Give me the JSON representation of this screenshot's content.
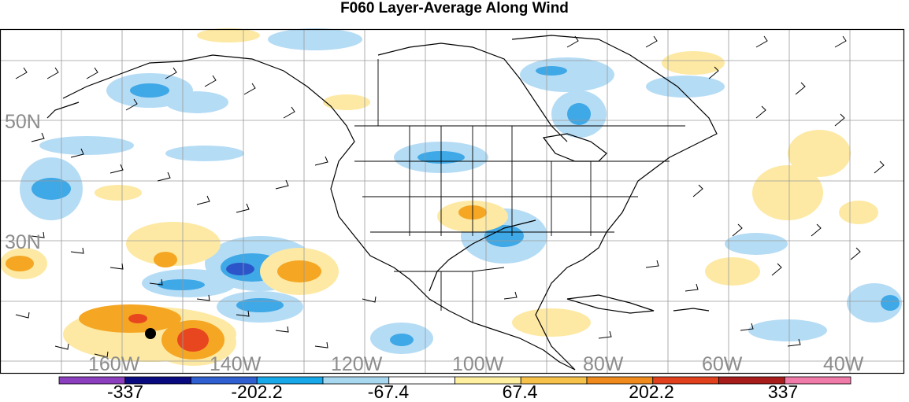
{
  "title": "F060 Layer-Average Along Wind",
  "lat_labels": [
    "50N",
    "30N"
  ],
  "lon_labels": [
    "160W",
    "140W",
    "120W",
    "100W",
    "80W",
    "60W",
    "40W"
  ],
  "colorbar": {
    "labels": [
      "-337",
      "-202.2",
      "-67.4",
      "67.4",
      "202.2",
      "337"
    ],
    "colors": [
      "#8b3fbf",
      "#0a0a80",
      "#2f5fd0",
      "#16a8e8",
      "#a8d8f0",
      "#ffffff",
      "#fff0a0",
      "#f6c24a",
      "#f08a1c",
      "#e0401c",
      "#a81c1c",
      "#f07aa8"
    ]
  },
  "contour_colors": {
    "light_blue": "#b5dcf5",
    "mid_blue": "#3fa8e6",
    "dark_blue": "#2b55c8",
    "light_yellow": "#fde9a3",
    "orange": "#f5a623",
    "red_orange": "#e8461f"
  },
  "marker": "black-dot"
}
